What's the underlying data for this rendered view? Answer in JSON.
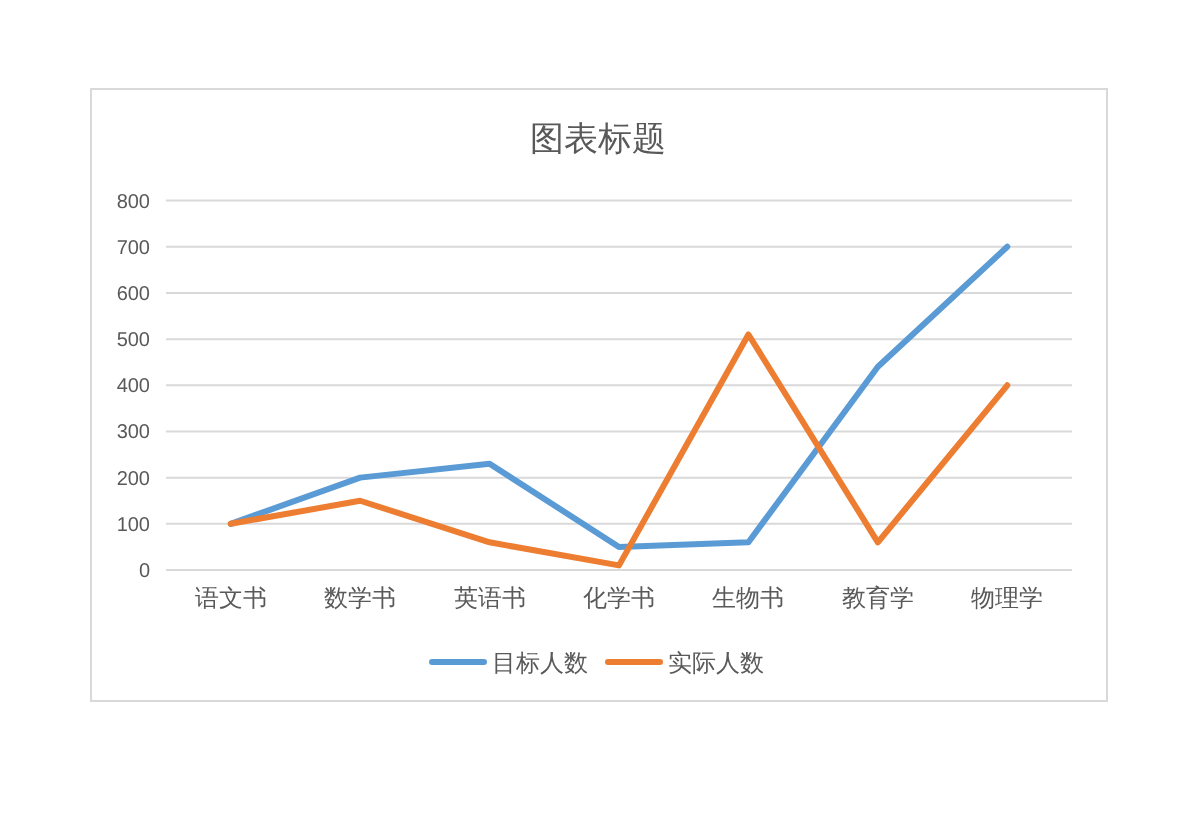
{
  "chart_data": {
    "type": "line",
    "title": "图表标题",
    "categories": [
      "语文书",
      "数学书",
      "英语书",
      "化学书",
      "生物书",
      "教育学",
      "物理学"
    ],
    "series": [
      {
        "name": "目标人数",
        "color": "#5b9bd5",
        "values": [
          100,
          200,
          230,
          50,
          60,
          440,
          700
        ]
      },
      {
        "name": "实际人数",
        "color": "#ed7d31",
        "values": [
          100,
          150,
          60,
          10,
          510,
          60,
          400
        ]
      }
    ],
    "ylim": [
      0,
      800
    ],
    "yticks": [
      0,
      100,
      200,
      300,
      400,
      500,
      600,
      700,
      800
    ],
    "grid": "y",
    "legend": "bottom",
    "line_style": "solid"
  }
}
